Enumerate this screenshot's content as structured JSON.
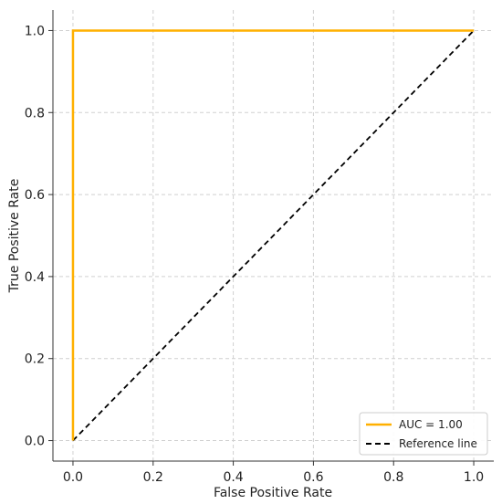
{
  "chart_data": {
    "type": "line",
    "xlabel": "False Positive Rate",
    "ylabel": "True Positive Rate",
    "xlim": [
      -0.05,
      1.05
    ],
    "ylim": [
      -0.05,
      1.05
    ],
    "xticks": [
      0.0,
      0.2,
      0.4,
      0.6,
      0.8,
      1.0
    ],
    "yticks": [
      0.0,
      0.2,
      0.4,
      0.6,
      0.8,
      1.0
    ],
    "xtick_labels": [
      "0.0",
      "0.2",
      "0.4",
      "0.6",
      "0.8",
      "1.0"
    ],
    "ytick_labels": [
      "0.0",
      "0.2",
      "0.4",
      "0.6",
      "0.8",
      "1.0"
    ],
    "grid": true,
    "legend_position": "bottom-right",
    "series": [
      {
        "name": "AUC = 1.00",
        "color": "#ffb000",
        "style": "solid",
        "x": [
          0.0,
          0.0,
          1.0
        ],
        "y": [
          0.0,
          1.0,
          1.0
        ]
      },
      {
        "name": "Reference line",
        "color": "#000000",
        "style": "dashed",
        "x": [
          0.0,
          1.0
        ],
        "y": [
          0.0,
          1.0
        ]
      }
    ]
  }
}
